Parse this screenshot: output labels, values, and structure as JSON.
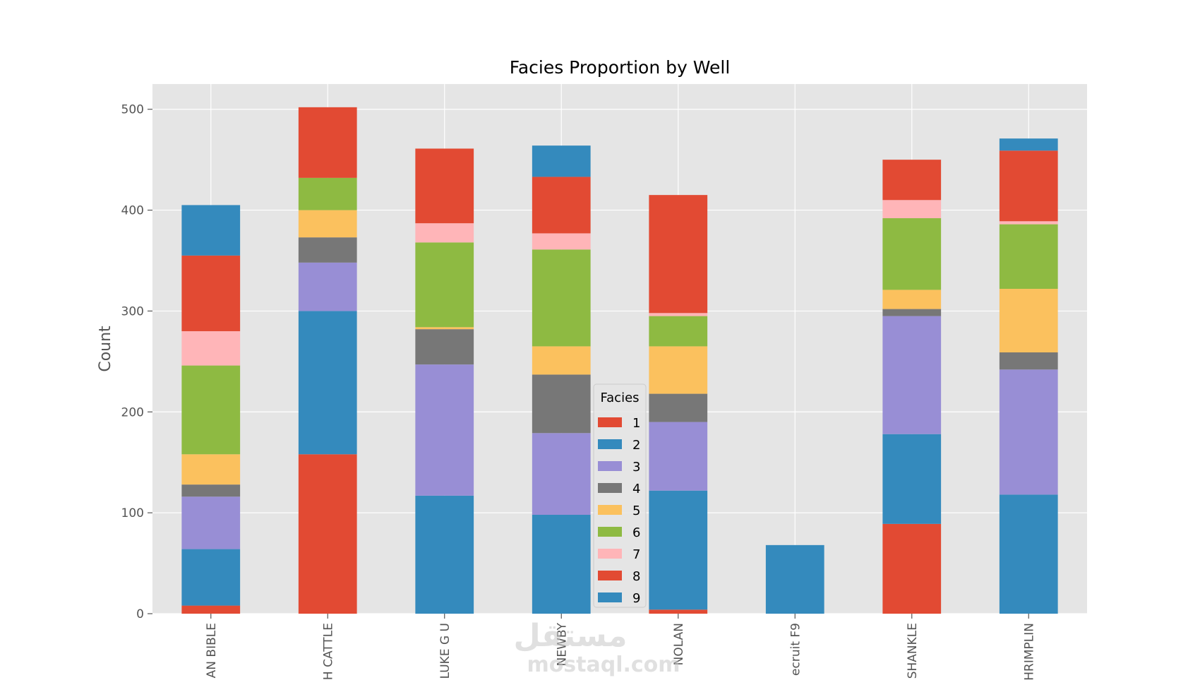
{
  "chart_data": {
    "type": "bar",
    "stacked": true,
    "title": "Facies Proportion by Well",
    "xlabel": "",
    "ylabel": "Count",
    "ylim": [
      0,
      525
    ],
    "yticks": [
      0,
      100,
      200,
      300,
      400,
      500
    ],
    "grid": true,
    "legend": {
      "title": "Facies",
      "position": "center-bottom"
    },
    "categories": [
      "AN BIBLE",
      "H CATTLE",
      "LUKE G U",
      "NEWBY",
      "NOLAN",
      "ecruit F9",
      "SHANKLE",
      "HRIMPLIN"
    ],
    "series": [
      {
        "name": "1",
        "color": "#E24A33",
        "values": [
          8,
          158,
          0,
          0,
          4,
          0,
          89,
          0
        ]
      },
      {
        "name": "2",
        "color": "#348ABD",
        "values": [
          56,
          142,
          117,
          98,
          118,
          68,
          89,
          118
        ]
      },
      {
        "name": "3",
        "color": "#988ED5",
        "values": [
          52,
          48,
          130,
          81,
          68,
          0,
          117,
          124
        ]
      },
      {
        "name": "4",
        "color": "#777777",
        "values": [
          12,
          25,
          35,
          58,
          28,
          0,
          7,
          17
        ]
      },
      {
        "name": "5",
        "color": "#FBC15E",
        "values": [
          30,
          27,
          2,
          28,
          47,
          0,
          19,
          63
        ]
      },
      {
        "name": "6",
        "color": "#8EBA42",
        "values": [
          88,
          32,
          84,
          96,
          30,
          0,
          71,
          64
        ]
      },
      {
        "name": "7",
        "color": "#FFB5B8",
        "values": [
          34,
          0,
          19,
          16,
          3,
          0,
          18,
          3
        ]
      },
      {
        "name": "8",
        "color": "#E24A33",
        "values": [
          75,
          70,
          74,
          56,
          117,
          0,
          40,
          70
        ]
      },
      {
        "name": "9",
        "color": "#348ABD",
        "values": [
          50,
          0,
          0,
          31,
          0,
          0,
          0,
          12
        ]
      }
    ]
  },
  "watermark": {
    "text_top": "مستقل",
    "text_bottom": "mostaql.com"
  }
}
